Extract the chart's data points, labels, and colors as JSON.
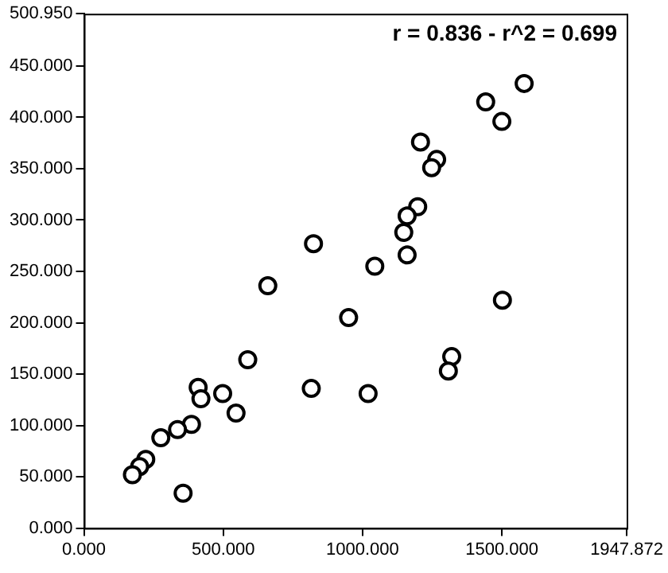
{
  "chart_data": {
    "type": "scatter",
    "x": [
      1580,
      1442,
      1500,
      1208,
      1266,
      1248,
      1198,
      1160,
      1148,
      1160,
      824,
      1044,
      660,
      1502,
      950,
      588,
      1320,
      1308,
      816,
      1020,
      410,
      420,
      498,
      546,
      386,
      336,
      276,
      222,
      200,
      174,
      356
    ],
    "values": [
      433,
      415,
      396,
      376,
      359,
      351,
      313,
      304,
      288,
      266,
      277,
      255,
      236,
      222,
      205,
      164,
      167,
      153,
      136,
      131,
      137,
      126,
      131,
      112,
      101,
      96,
      88,
      67,
      60,
      52,
      34
    ],
    "color": "#000000",
    "marker": "circle",
    "xlim": [
      0,
      1947.872
    ],
    "xticks": [
      {
        "value": 0,
        "label": "0.000"
      },
      {
        "value": 500,
        "label": "500.000"
      },
      {
        "value": 1000,
        "label": "1000.000"
      },
      {
        "value": 1500,
        "label": "1500.000"
      },
      {
        "value": 1947.872,
        "label": "1947.872"
      }
    ],
    "ylim": [
      0,
      500.95
    ],
    "yticks": [
      {
        "value": 0,
        "label": "0.000"
      },
      {
        "value": 50,
        "label": "50.000"
      },
      {
        "value": 100,
        "label": "100.000"
      },
      {
        "value": 150,
        "label": "150.000"
      },
      {
        "value": 200,
        "label": "200.000"
      },
      {
        "value": 250,
        "label": "250.000"
      },
      {
        "value": 300,
        "label": "300.000"
      },
      {
        "value": 350,
        "label": "350.000"
      },
      {
        "value": 400,
        "label": "400.000"
      },
      {
        "value": 450,
        "label": "450.000"
      },
      {
        "value": 500.95,
        "label": "500.950"
      }
    ],
    "annotations": [
      "r = 0.836 - r^2 = 0.699"
    ],
    "grid": false,
    "legend": false
  }
}
